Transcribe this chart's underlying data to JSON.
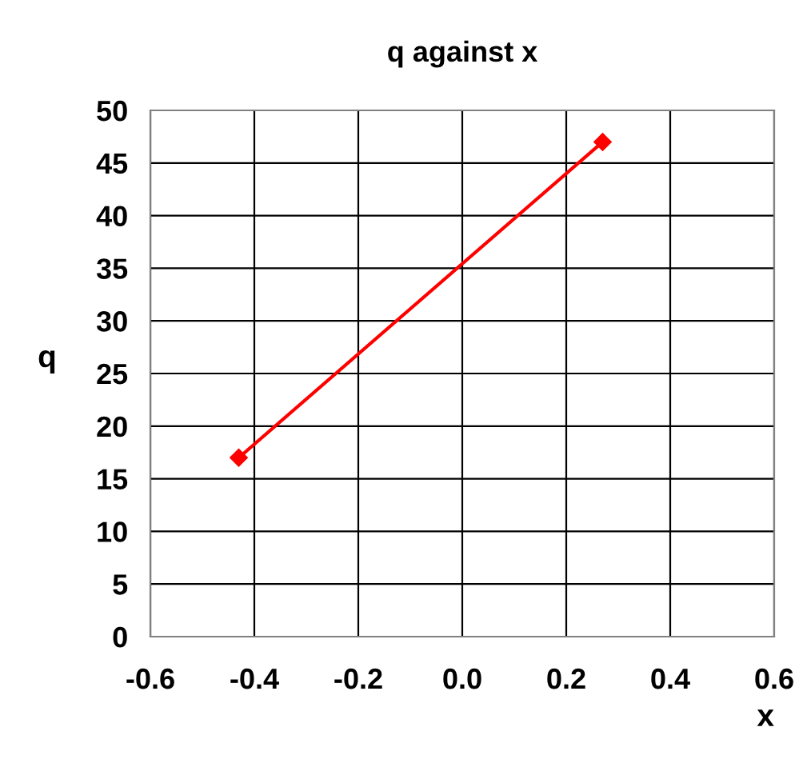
{
  "chart_data": {
    "type": "line",
    "title": "q against x",
    "xlabel": "x",
    "ylabel": "q",
    "x": [
      -0.43,
      0.27
    ],
    "series": [
      {
        "color": "#ff0000",
        "values": [
          17,
          47
        ]
      }
    ],
    "marker": "diamond",
    "line_style": "solid",
    "grid": true,
    "legend": false,
    "xlim": [
      -0.6,
      0.6
    ],
    "xticks": [
      {
        "value": -0.6,
        "label": "-0.6"
      },
      {
        "value": -0.4,
        "label": "-0.4"
      },
      {
        "value": -0.2,
        "label": "-0.2"
      },
      {
        "value": 0,
        "label": "0.0"
      },
      {
        "value": 0.2,
        "label": "0.2"
      },
      {
        "value": 0.4,
        "label": "0.4"
      },
      {
        "value": 0.6,
        "label": "0.6"
      }
    ],
    "ylim": [
      0,
      50
    ],
    "yticks": [
      0,
      5,
      10,
      15,
      20,
      25,
      30,
      35,
      40,
      45,
      50
    ]
  }
}
